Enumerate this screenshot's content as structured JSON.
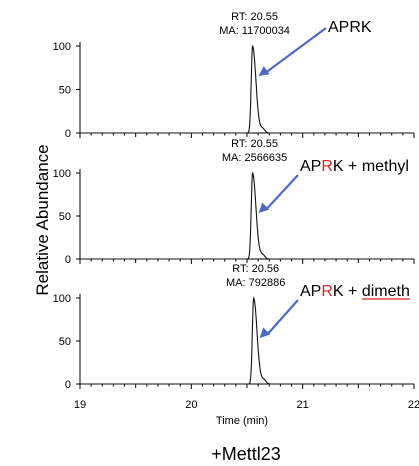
{
  "chart_data": {
    "type": "line",
    "ylabel": "Relative Abundance",
    "xlabel": "Time (min)",
    "caption": "+Mettl23",
    "xlim": [
      19,
      22
    ],
    "x_ticks": [
      "19",
      "20",
      "21",
      "22"
    ],
    "ylim": [
      0,
      100
    ],
    "y_ticks": [
      "0",
      "50",
      "100"
    ],
    "grid": false,
    "panels": [
      {
        "series_name": "APRK",
        "series_parts": [
          {
            "text": "AP",
            "color": "#000000",
            "underline": false
          },
          {
            "text": "R",
            "color": "#000000",
            "underline": false
          },
          {
            "text": "K",
            "color": "#000000",
            "underline": false
          }
        ],
        "rt_label": "RT: 20.55",
        "ma_label": "MA: 11700034",
        "peak_x": 20.55,
        "peak_y": 100
      },
      {
        "series_name": "APRK + methyl",
        "series_parts": [
          {
            "text": "AP",
            "color": "#000000",
            "underline": false
          },
          {
            "text": "R",
            "color": "#d9281f",
            "underline": false
          },
          {
            "text": "K",
            "color": "#000000",
            "underline": false
          },
          {
            "text": " + ",
            "color": "#000000",
            "underline": false
          },
          {
            "text": "methyl",
            "color": "#000000",
            "underline": false
          }
        ],
        "rt_label": "RT: 20.55",
        "ma_label": "MA: 2566635",
        "peak_x": 20.55,
        "peak_y": 100
      },
      {
        "series_name": "APRK + dimeth",
        "series_parts": [
          {
            "text": "AP",
            "color": "#000000",
            "underline": false
          },
          {
            "text": "R",
            "color": "#d9281f",
            "underline": false
          },
          {
            "text": "K",
            "color": "#000000",
            "underline": false
          },
          {
            "text": " + ",
            "color": "#000000",
            "underline": false
          },
          {
            "text": "dimeth",
            "color": "#000000",
            "underline": true
          }
        ],
        "rt_label": "RT: 20.56",
        "ma_label": "MA: 792886",
        "peak_x": 20.56,
        "peak_y": 100
      }
    ]
  },
  "colors": {
    "axis": "#000000",
    "trace": "#111111",
    "arrow": "#4a6cc8",
    "highlight": "#d9281f",
    "underline": "#d9281f"
  }
}
